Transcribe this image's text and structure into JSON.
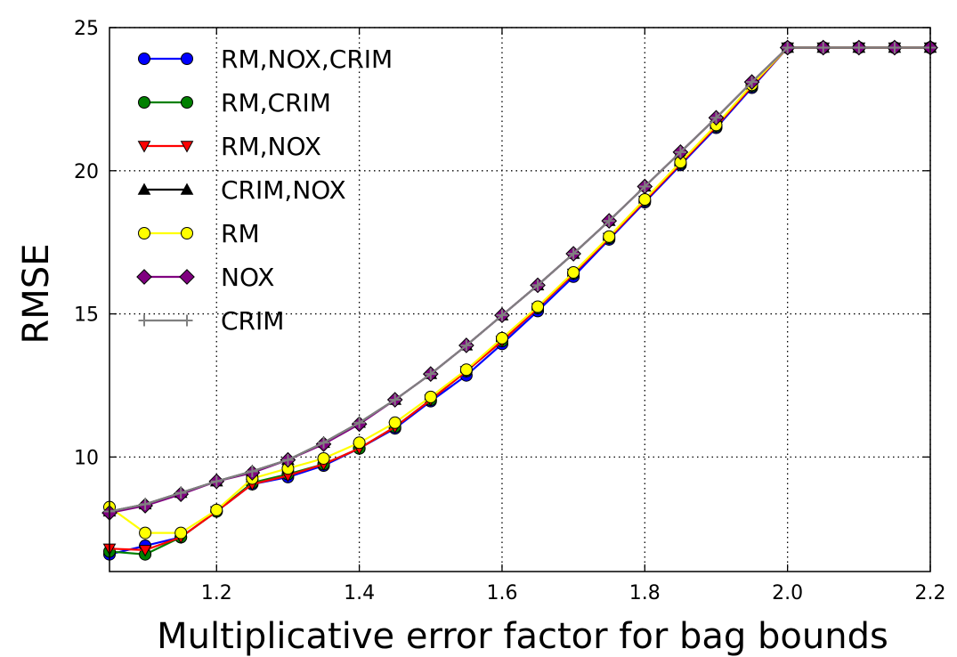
{
  "chart_data": {
    "type": "line",
    "xlabel": "Multiplicative error factor for bag bounds",
    "ylabel": "RMSE",
    "xlim": [
      1.05,
      2.2
    ],
    "ylim": [
      6,
      25
    ],
    "xticks": [
      "1.2",
      "1.4",
      "1.6",
      "1.8",
      "2.0",
      "2.2"
    ],
    "yticks": [
      "10",
      "15",
      "20",
      "25"
    ],
    "grid": true,
    "legend_position": "upper-left",
    "x": [
      1.05,
      1.1,
      1.15,
      1.2,
      1.25,
      1.3,
      1.35,
      1.4,
      1.45,
      1.5,
      1.55,
      1.6,
      1.65,
      1.7,
      1.75,
      1.8,
      1.85,
      1.9,
      1.95,
      2.0,
      2.05,
      2.1,
      2.15,
      2.2
    ],
    "series": [
      {
        "name": "RM,NOX,CRIM",
        "color": "#0000ff",
        "marker": "circle",
        "values": [
          6.6,
          6.9,
          7.2,
          8.1,
          9.05,
          9.3,
          9.7,
          10.3,
          11.0,
          11.95,
          12.85,
          13.95,
          15.1,
          16.3,
          17.6,
          18.9,
          20.2,
          21.5,
          22.9,
          24.3,
          24.3,
          24.3,
          24.3,
          24.3
        ]
      },
      {
        "name": "RM,CRIM",
        "color": "#008000",
        "marker": "circle",
        "values": [
          6.7,
          6.6,
          7.2,
          8.1,
          9.1,
          9.4,
          9.75,
          10.3,
          11.05,
          12.0,
          13.0,
          14.05,
          15.2,
          16.4,
          17.65,
          18.95,
          20.25,
          21.55,
          22.95,
          24.3,
          24.3,
          24.3,
          24.3,
          24.3
        ]
      },
      {
        "name": "RM,NOX",
        "color": "#ff0000",
        "marker": "triangle-down",
        "values": [
          6.8,
          6.75,
          7.2,
          8.1,
          9.05,
          9.35,
          9.75,
          10.3,
          11.05,
          12.0,
          13.0,
          14.05,
          15.2,
          16.4,
          17.65,
          18.95,
          20.25,
          21.55,
          22.95,
          24.3,
          24.3,
          24.3,
          24.3,
          24.3
        ]
      },
      {
        "name": "CRIM,NOX",
        "color": "#000000",
        "marker": "triangle-up",
        "values": [
          8.1,
          8.35,
          8.75,
          9.15,
          9.5,
          9.9,
          10.5,
          11.2,
          12.0,
          12.9,
          13.9,
          14.95,
          16.0,
          17.1,
          18.25,
          19.45,
          20.65,
          21.85,
          23.1,
          24.3,
          24.3,
          24.3,
          24.3,
          24.3
        ]
      },
      {
        "name": "RM",
        "color": "#ffff00",
        "marker": "circle",
        "values": [
          8.25,
          7.35,
          7.35,
          8.15,
          9.25,
          9.6,
          9.95,
          10.5,
          11.2,
          12.1,
          13.05,
          14.15,
          15.25,
          16.45,
          17.7,
          19.0,
          20.3,
          21.6,
          23.0,
          24.3,
          24.3,
          24.3,
          24.3,
          24.3
        ]
      },
      {
        "name": "NOX",
        "color": "#800080",
        "marker": "diamond",
        "values": [
          8.05,
          8.3,
          8.7,
          9.15,
          9.45,
          9.9,
          10.45,
          11.15,
          12.0,
          12.9,
          13.9,
          14.95,
          16.0,
          17.1,
          18.25,
          19.45,
          20.65,
          21.85,
          23.1,
          24.3,
          24.3,
          24.3,
          24.3,
          24.3
        ]
      },
      {
        "name": "CRIM",
        "color": "#808080",
        "marker": "plus",
        "values": [
          8.1,
          8.35,
          8.75,
          9.15,
          9.5,
          9.9,
          10.5,
          11.2,
          12.0,
          12.9,
          13.9,
          14.95,
          16.0,
          17.1,
          18.25,
          19.45,
          20.65,
          21.85,
          23.1,
          24.3,
          24.3,
          24.3,
          24.3,
          24.3
        ]
      }
    ]
  }
}
